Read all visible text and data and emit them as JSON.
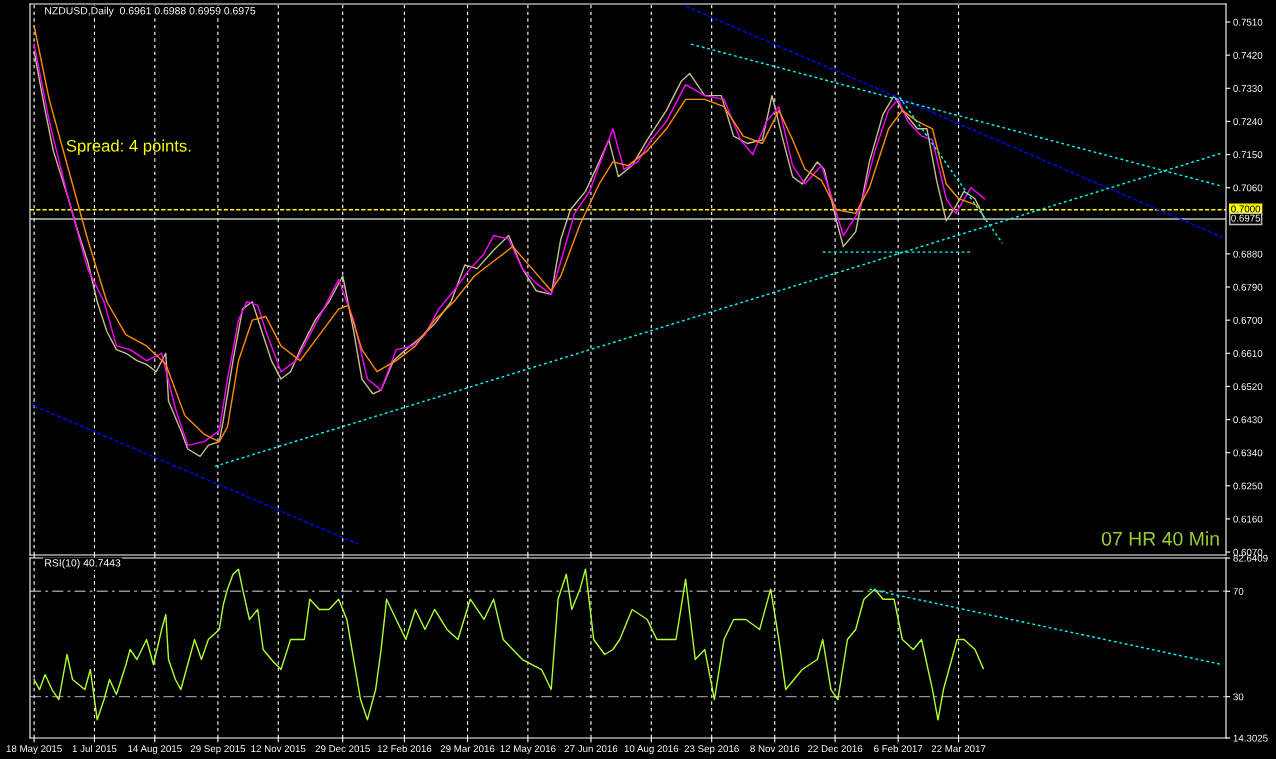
{
  "chart_data": [
    {
      "type": "line",
      "title": "NZDUSD,Daily  0.6961 0.6988 0.6959 0.6975",
      "annotations": [
        "Spread: 4 points.",
        "07 HR 40 Min"
      ],
      "xlim": [
        "2015-05-15",
        "2017-10-03"
      ],
      "xticks": [
        {
          "value": "2015-05-18",
          "label": null
        },
        {
          "value": "2015-07-01",
          "label": null
        },
        {
          "value": "2015-08-14",
          "label": null
        },
        {
          "value": "2015-09-29",
          "label": null
        },
        {
          "value": "2015-11-12",
          "label": null
        },
        {
          "value": "2015-12-29",
          "label": null
        },
        {
          "value": "2016-02-12",
          "label": null
        },
        {
          "value": "2016-03-29",
          "label": null
        },
        {
          "value": "2016-05-12",
          "label": null
        },
        {
          "value": "2016-06-27",
          "label": null
        },
        {
          "value": "2016-08-10",
          "label": null
        },
        {
          "value": "2016-09-23",
          "label": null
        },
        {
          "value": "2016-11-08",
          "label": null
        },
        {
          "value": "2016-12-22",
          "label": null
        },
        {
          "value": "2017-02-06",
          "label": null
        },
        {
          "value": "2017-03-22",
          "label": null
        }
      ],
      "ylim": [
        0.6062,
        0.7559
      ],
      "yticks": [
        {
          "value": 0.607,
          "label": "0.6070"
        },
        {
          "value": 0.616,
          "label": "0.6160"
        },
        {
          "value": 0.625,
          "label": "0.6250"
        },
        {
          "value": 0.634,
          "label": "0.6340"
        },
        {
          "value": 0.643,
          "label": "0.6430"
        },
        {
          "value": 0.652,
          "label": "0.6520"
        },
        {
          "value": 0.661,
          "label": "0.6610"
        },
        {
          "value": 0.67,
          "label": "0.6700"
        },
        {
          "value": 0.679,
          "label": "0.6790"
        },
        {
          "value": 0.688,
          "label": "0.6880"
        },
        {
          "value": 0.706,
          "label": "0.7060"
        },
        {
          "value": 0.715,
          "label": "0.7150"
        },
        {
          "value": 0.724,
          "label": "0.7240"
        },
        {
          "value": 0.733,
          "label": "0.7330"
        },
        {
          "value": 0.742,
          "label": "0.7420"
        },
        {
          "value": 0.751,
          "label": "0.7510"
        }
      ],
      "grid": "x",
      "legend": false,
      "tick_labels": "y",
      "ref_lines": [
        {
          "axis": "y",
          "value": 0.7,
          "label": "0.7000",
          "color": "#ffff00",
          "line_style": "dashed"
        },
        {
          "axis": "y",
          "value": 0.6975,
          "label": "0.6975",
          "color": "#c0c0c0",
          "line_style": "solid"
        }
      ],
      "series": [
        {
          "color": "#c8c08c",
          "line_style": "solid",
          "x": [
            "2015-05-18",
            "2015-05-26",
            "2015-06-01",
            "2015-06-12",
            "2015-06-19",
            "2015-06-26",
            "2015-07-03",
            "2015-07-10",
            "2015-07-17",
            "2015-07-24",
            "2015-08-01",
            "2015-08-08",
            "2015-08-15",
            "2015-08-22",
            "2015-08-24",
            "2015-09-02",
            "2015-09-07",
            "2015-09-16",
            "2015-09-22",
            "2015-09-30",
            "2015-10-03",
            "2015-10-10",
            "2015-10-17",
            "2015-10-24",
            "2015-10-31",
            "2015-11-07",
            "2015-11-14",
            "2015-11-21",
            "2015-11-28",
            "2015-12-09",
            "2015-12-19",
            "2015-12-29",
            "2016-01-06",
            "2016-01-12",
            "2016-01-20",
            "2016-01-26",
            "2016-02-04",
            "2016-02-13",
            "2016-02-23",
            "2016-03-05",
            "2016-03-17",
            "2016-03-27",
            "2016-04-05",
            "2016-04-17",
            "2016-04-28",
            "2016-05-08",
            "2016-05-18",
            "2016-05-29",
            "2016-06-05",
            "2016-06-12",
            "2016-06-23",
            "2016-07-03",
            "2016-07-10",
            "2016-07-17",
            "2016-07-27",
            "2016-08-07",
            "2016-08-21",
            "2016-09-01",
            "2016-09-07",
            "2016-09-18",
            "2016-09-30",
            "2016-10-09",
            "2016-10-19",
            "2016-10-30",
            "2016-11-06",
            "2016-11-14",
            "2016-11-21",
            "2016-11-28",
            "2016-12-09",
            "2016-12-14",
            "2016-12-23",
            "2016-12-28",
            "2017-01-06",
            "2017-01-16",
            "2017-01-26",
            "2017-02-03",
            "2017-02-09",
            "2017-02-20",
            "2017-02-27",
            "2017-03-06",
            "2017-03-13",
            "2017-03-20",
            "2017-03-26",
            "2017-04-03",
            "2017-04-10"
          ],
          "values": [
            0.743,
            0.727,
            0.716,
            0.703,
            0.694,
            0.686,
            0.675,
            0.667,
            0.662,
            0.661,
            0.659,
            0.658,
            0.656,
            0.661,
            0.648,
            0.64,
            0.635,
            0.633,
            0.636,
            0.637,
            0.643,
            0.659,
            0.673,
            0.675,
            0.667,
            0.659,
            0.654,
            0.656,
            0.662,
            0.67,
            0.675,
            0.682,
            0.667,
            0.654,
            0.65,
            0.651,
            0.659,
            0.662,
            0.665,
            0.669,
            0.675,
            0.685,
            0.684,
            0.689,
            0.693,
            0.684,
            0.678,
            0.677,
            0.692,
            0.7,
            0.705,
            0.713,
            0.719,
            0.709,
            0.712,
            0.719,
            0.727,
            0.735,
            0.737,
            0.731,
            0.731,
            0.72,
            0.718,
            0.719,
            0.731,
            0.719,
            0.709,
            0.707,
            0.713,
            0.711,
            0.697,
            0.69,
            0.694,
            0.713,
            0.726,
            0.731,
            0.727,
            0.722,
            0.722,
            0.708,
            0.697,
            0.701,
            0.705,
            0.703,
            0.6975
          ]
        },
        {
          "color": "#ff00ff",
          "line_style": "solid",
          "x": [
            "2015-05-18",
            "2015-05-29",
            "2015-06-12",
            "2015-06-26",
            "2015-07-08",
            "2015-07-17",
            "2015-07-27",
            "2015-08-08",
            "2015-08-19",
            "2015-08-29",
            "2015-09-07",
            "2015-09-19",
            "2015-09-30",
            "2015-10-06",
            "2015-10-14",
            "2015-10-20",
            "2015-10-28",
            "2015-11-03",
            "2015-11-14",
            "2015-11-25",
            "2015-12-05",
            "2015-12-15",
            "2015-12-26",
            "2016-01-06",
            "2016-01-16",
            "2016-01-26",
            "2016-02-06",
            "2016-02-18",
            "2016-02-27",
            "2016-03-08",
            "2016-03-19",
            "2016-03-31",
            "2016-04-10",
            "2016-04-17",
            "2016-04-28",
            "2016-05-08",
            "2016-05-18",
            "2016-05-29",
            "2016-06-05",
            "2016-06-15",
            "2016-06-26",
            "2016-07-07",
            "2016-07-13",
            "2016-07-21",
            "2016-07-31",
            "2016-08-10",
            "2016-08-21",
            "2016-09-04",
            "2016-09-18",
            "2016-10-02",
            "2016-10-14",
            "2016-10-23",
            "2016-11-02",
            "2016-11-11",
            "2016-11-21",
            "2016-11-30",
            "2016-12-12",
            "2016-12-19",
            "2016-12-28",
            "2017-01-09",
            "2017-01-20",
            "2017-01-30",
            "2017-02-06",
            "2017-02-13",
            "2017-02-23",
            "2017-03-03",
            "2017-03-13",
            "2017-03-20",
            "2017-03-31",
            "2017-04-10"
          ],
          "values": [
            0.745,
            0.724,
            0.703,
            0.684,
            0.675,
            0.663,
            0.662,
            0.659,
            0.661,
            0.646,
            0.636,
            0.637,
            0.64,
            0.654,
            0.67,
            0.675,
            0.674,
            0.667,
            0.656,
            0.659,
            0.666,
            0.673,
            0.681,
            0.67,
            0.654,
            0.651,
            0.662,
            0.663,
            0.666,
            0.673,
            0.678,
            0.684,
            0.688,
            0.693,
            0.692,
            0.684,
            0.68,
            0.677,
            0.686,
            0.699,
            0.705,
            0.716,
            0.722,
            0.711,
            0.713,
            0.719,
            0.724,
            0.734,
            0.731,
            0.73,
            0.719,
            0.715,
            0.724,
            0.728,
            0.712,
            0.707,
            0.712,
            0.704,
            0.693,
            0.7,
            0.716,
            0.727,
            0.73,
            0.724,
            0.72,
            0.719,
            0.703,
            0.699,
            0.706,
            0.703
          ]
        },
        {
          "color": "#ff8c00",
          "line_style": "solid",
          "x": [
            "2015-05-18",
            "2015-05-29",
            "2015-06-12",
            "2015-06-26",
            "2015-07-10",
            "2015-07-24",
            "2015-08-08",
            "2015-08-22",
            "2015-09-05",
            "2015-09-19",
            "2015-09-30",
            "2015-10-06",
            "2015-10-14",
            "2015-10-24",
            "2015-11-03",
            "2015-11-14",
            "2015-11-28",
            "2015-12-12",
            "2015-12-26",
            "2016-01-02",
            "2016-01-12",
            "2016-01-23",
            "2016-02-06",
            "2016-02-20",
            "2016-03-05",
            "2016-03-19",
            "2016-04-03",
            "2016-04-17",
            "2016-05-01",
            "2016-05-15",
            "2016-05-29",
            "2016-06-05",
            "2016-06-19",
            "2016-07-03",
            "2016-07-13",
            "2016-07-24",
            "2016-08-07",
            "2016-08-21",
            "2016-09-04",
            "2016-09-18",
            "2016-10-02",
            "2016-10-16",
            "2016-10-30",
            "2016-11-11",
            "2016-11-21",
            "2016-11-30",
            "2016-12-12",
            "2016-12-23",
            "2017-01-06",
            "2017-01-16",
            "2017-01-30",
            "2017-02-09",
            "2017-02-20",
            "2017-03-03",
            "2017-03-13",
            "2017-03-22",
            "2017-04-06"
          ],
          "values": [
            0.75,
            0.73,
            0.711,
            0.692,
            0.675,
            0.666,
            0.663,
            0.658,
            0.644,
            0.639,
            0.637,
            0.641,
            0.659,
            0.67,
            0.671,
            0.663,
            0.659,
            0.666,
            0.673,
            0.674,
            0.662,
            0.656,
            0.659,
            0.663,
            0.67,
            0.675,
            0.682,
            0.686,
            0.69,
            0.684,
            0.678,
            0.682,
            0.696,
            0.707,
            0.713,
            0.712,
            0.716,
            0.722,
            0.73,
            0.73,
            0.728,
            0.72,
            0.718,
            0.727,
            0.719,
            0.711,
            0.708,
            0.7,
            0.699,
            0.706,
            0.722,
            0.727,
            0.724,
            0.722,
            0.707,
            0.703,
            0.701
          ]
        },
        {
          "color": "#0000ff",
          "line_style": "dashed",
          "x": [
            "2015-05-18",
            "2016-01-09"
          ],
          "values": [
            0.6467,
            0.6092
          ]
        },
        {
          "color": "#0000ff",
          "line_style": "dashed",
          "x": [
            "2016-09-04",
            "2017-09-30"
          ],
          "values": [
            0.7553,
            0.6926
          ]
        },
        {
          "color": "#00ffff",
          "line_style": "dotted",
          "x": [
            "2015-09-27",
            "2017-09-30"
          ],
          "values": [
            0.6303,
            0.7154
          ]
        },
        {
          "color": "#00ffff",
          "line_style": "dotted",
          "x": [
            "2016-09-08",
            "2017-09-30"
          ],
          "values": [
            0.745,
            0.7064
          ]
        },
        {
          "color": "#00ffff",
          "line_style": "dotted",
          "x": [
            "2017-02-07",
            "2017-04-23"
          ],
          "values": [
            0.7306,
            0.6909
          ]
        },
        {
          "color": "#00ffff",
          "line_style": "dotted",
          "x": [
            "2016-12-13",
            "2017-03-31"
          ],
          "values": [
            0.6885,
            0.6885
          ]
        }
      ]
    },
    {
      "type": "line",
      "title": "RSI(10) 40.7443",
      "xlim": [
        "2015-05-15",
        "2017-10-03"
      ],
      "xticks": [
        {
          "value": "2015-05-18",
          "label": "18 May 2015"
        },
        {
          "value": "2015-07-01",
          "label": "1 Jul 2015"
        },
        {
          "value": "2015-08-14",
          "label": "14 Aug 2015"
        },
        {
          "value": "2015-09-29",
          "label": "29 Sep 2015"
        },
        {
          "value": "2015-11-12",
          "label": "12 Nov 2015"
        },
        {
          "value": "2015-12-29",
          "label": "29 Dec 2015"
        },
        {
          "value": "2016-02-12",
          "label": "12 Feb 2016"
        },
        {
          "value": "2016-03-29",
          "label": "29 Mar 2016"
        },
        {
          "value": "2016-05-12",
          "label": "12 May 2016"
        },
        {
          "value": "2016-06-27",
          "label": "27 Jun 2016"
        },
        {
          "value": "2016-08-10",
          "label": "10 Aug 2016"
        },
        {
          "value": "2016-09-23",
          "label": "23 Sep 2016"
        },
        {
          "value": "2016-11-08",
          "label": "8 Nov 2016"
        },
        {
          "value": "2016-12-22",
          "label": "22 Dec 2016"
        },
        {
          "value": "2017-02-06",
          "label": "6 Feb 2017"
        },
        {
          "value": "2017-03-22",
          "label": "22 Mar 2017"
        }
      ],
      "ylim": [
        14.3025,
        82.6409
      ],
      "yticks": [
        14.3025,
        30,
        70,
        82.6409
      ],
      "grid": "x",
      "legend": false,
      "ref_lines": [
        {
          "axis": "y",
          "value": 70,
          "color": "#909090",
          "line_style": "dashdot"
        },
        {
          "axis": "y",
          "value": 30,
          "color": "#909090",
          "line_style": "dashdot"
        }
      ],
      "series": [
        {
          "color": "#adff2f",
          "line_style": "solid",
          "x": [
            "2015-05-18",
            "2015-05-22",
            "2015-05-26",
            "2015-05-31",
            "2015-06-05",
            "2015-06-11",
            "2015-06-15",
            "2015-06-24",
            "2015-06-28",
            "2015-07-03",
            "2015-07-08",
            "2015-07-12",
            "2015-07-17",
            "2015-07-24",
            "2015-07-27",
            "2015-08-01",
            "2015-08-08",
            "2015-08-13",
            "2015-08-19",
            "2015-08-22",
            "2015-08-24",
            "2015-08-29",
            "2015-09-02",
            "2015-09-06",
            "2015-09-12",
            "2015-09-17",
            "2015-09-22",
            "2015-09-30",
            "2015-10-03",
            "2015-10-06",
            "2015-10-10",
            "2015-10-14",
            "2015-10-17",
            "2015-10-22",
            "2015-10-28",
            "2015-11-01",
            "2015-11-07",
            "2015-11-14",
            "2015-11-21",
            "2015-12-01",
            "2015-12-05",
            "2015-12-12",
            "2015-12-19",
            "2015-12-26",
            "2016-01-01",
            "2016-01-06",
            "2016-01-11",
            "2016-01-16",
            "2016-01-22",
            "2016-01-26",
            "2016-01-30",
            "2016-02-06",
            "2016-02-13",
            "2016-02-20",
            "2016-02-27",
            "2016-03-05",
            "2016-03-14",
            "2016-03-22",
            "2016-03-31",
            "2016-04-10",
            "2016-04-17",
            "2016-04-24",
            "2016-05-01",
            "2016-05-08",
            "2016-05-15",
            "2016-05-22",
            "2016-05-29",
            "2016-06-03",
            "2016-06-09",
            "2016-06-13",
            "2016-06-19",
            "2016-06-23",
            "2016-06-29",
            "2016-07-07",
            "2016-07-13",
            "2016-07-18",
            "2016-07-27",
            "2016-08-07",
            "2016-08-14",
            "2016-08-21",
            "2016-08-28",
            "2016-09-04",
            "2016-09-11",
            "2016-09-18",
            "2016-09-25",
            "2016-10-02",
            "2016-10-09",
            "2016-10-18",
            "2016-10-28",
            "2016-11-05",
            "2016-11-11",
            "2016-11-16",
            "2016-11-22",
            "2016-11-28",
            "2016-12-09",
            "2016-12-13",
            "2016-12-19",
            "2016-12-24",
            "2016-12-31",
            "2017-01-06",
            "2017-01-12",
            "2017-01-20",
            "2017-01-26",
            "2017-02-03",
            "2017-02-09",
            "2017-02-17",
            "2017-02-23",
            "2017-03-03",
            "2017-03-07",
            "2017-03-11",
            "2017-03-17",
            "2017-03-21",
            "2017-03-26",
            "2017-04-03",
            "2017-04-09"
          ],
          "values": [
            36.5,
            32.7,
            38.4,
            32.7,
            28.9,
            46,
            36.5,
            32.7,
            40.3,
            21.2,
            28.9,
            36.5,
            30.8,
            42.2,
            47.9,
            44.1,
            51.7,
            42.2,
            55.5,
            61.2,
            44.1,
            36.5,
            32.7,
            40.3,
            51.7,
            44.1,
            51.7,
            55.5,
            65,
            70.8,
            76.5,
            78.4,
            70.8,
            59.3,
            63.1,
            47.9,
            44.1,
            40.3,
            51.7,
            51.7,
            67,
            63.1,
            63.1,
            67,
            59.3,
            44.1,
            28.9,
            21.2,
            32.7,
            47.9,
            67,
            59.3,
            51.7,
            63.1,
            55.5,
            63.1,
            55.5,
            51.7,
            67,
            59.3,
            67,
            51.7,
            47.9,
            44.1,
            42.2,
            40.3,
            32.7,
            67,
            76.5,
            63.1,
            70.8,
            78.4,
            51.7,
            46,
            47.9,
            51.7,
            63.1,
            59.3,
            51.7,
            51.7,
            51.7,
            74.6,
            44.1,
            47.9,
            28.9,
            51.7,
            59.3,
            59.3,
            55.5,
            70.8,
            51.7,
            32.7,
            36.5,
            40.3,
            44.1,
            51.7,
            32.7,
            28.9,
            51.7,
            55.5,
            67,
            70.8,
            67,
            67,
            51.7,
            47.9,
            51.7,
            32.7,
            21.2,
            32.7,
            44.1,
            51.7,
            51.7,
            47.9,
            40.7
          ]
        },
        {
          "color": "#00ffff",
          "line_style": "dotted",
          "x": [
            "2017-01-16",
            "2017-09-30"
          ],
          "values": [
            70.8,
            42.2
          ]
        }
      ]
    }
  ]
}
